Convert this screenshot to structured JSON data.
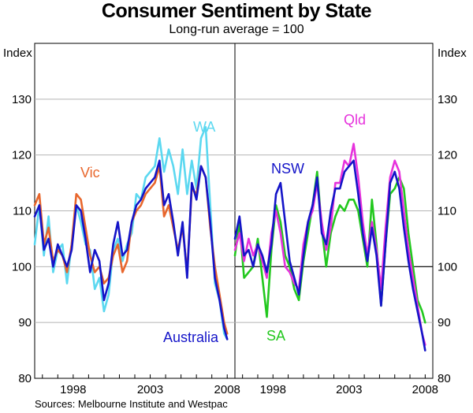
{
  "chart_data": {
    "type": "line",
    "title": "Consumer Sentiment by State",
    "subtitle": "Long-run average = 100",
    "ylabel_left": "Index",
    "ylabel_right": "Index",
    "ylim": [
      80,
      140
    ],
    "yticks": [
      80,
      90,
      100,
      110,
      120,
      130
    ],
    "xlim": [
      1995.5,
      2008.5
    ],
    "xticks": [
      1998,
      2003,
      2008
    ],
    "reference_line": 100,
    "source": "Sources: Melbourne Institute and Westpac",
    "panels": [
      {
        "name": "left",
        "series": [
          {
            "name": "WA",
            "label": "WA",
            "color": "#5bd8f0",
            "x": [
              1995.5,
              1995.8,
              1996.1,
              1996.4,
              1996.7,
              1997.0,
              1997.3,
              1997.6,
              1997.9,
              1998.2,
              1998.5,
              1998.8,
              1999.1,
              1999.4,
              1999.7,
              2000.0,
              2000.3,
              2000.6,
              2000.9,
              2001.2,
              2001.5,
              2001.8,
              2002.1,
              2002.4,
              2002.7,
              2003.0,
              2003.3,
              2003.6,
              2003.9,
              2004.2,
              2004.5,
              2004.8,
              2005.1,
              2005.4,
              2005.7,
              2006.0,
              2006.3,
              2006.6,
              2006.9,
              2007.2,
              2007.5,
              2007.8,
              2008.0
            ],
            "y": [
              104,
              111,
              102,
              109,
              99,
              103,
              104,
              97,
              104,
              111,
              108,
              104,
              103,
              96,
              98,
              92,
              95,
              103,
              105,
              101,
              104,
              106,
              113,
              112,
              116,
              117,
              118,
              123,
              117,
              121,
              118,
              113,
              121,
              113,
              119,
              114,
              123,
              125,
              111,
              97,
              94,
              88,
              87
            ]
          },
          {
            "name": "Vic",
            "label": "Vic",
            "color": "#e8662c",
            "x": [
              1995.5,
              1995.8,
              1996.1,
              1996.4,
              1996.7,
              1997.0,
              1997.3,
              1997.6,
              1997.9,
              1998.2,
              1998.5,
              1998.8,
              1999.1,
              1999.4,
              1999.7,
              2000.0,
              2000.3,
              2000.6,
              2000.9,
              2001.2,
              2001.5,
              2001.8,
              2002.1,
              2002.4,
              2002.7,
              2003.0,
              2003.3,
              2003.6,
              2003.9,
              2004.2,
              2004.5,
              2004.8,
              2005.1,
              2005.4,
              2005.7,
              2006.0,
              2006.3,
              2006.6,
              2006.9,
              2007.2,
              2007.5,
              2007.8,
              2008.0
            ],
            "y": [
              111,
              113,
              104,
              107,
              101,
              103,
              102,
              99,
              104,
              113,
              112,
              107,
              102,
              99,
              100,
              97,
              98,
              102,
              104,
              99,
              101,
              108,
              110,
              111,
              113,
              114,
              115,
              118,
              109,
              111,
              107,
              103,
              107,
              99,
              114,
              113,
              118,
              116,
              107,
              100,
              95,
              90,
              88
            ]
          },
          {
            "name": "Australia",
            "label": "Australia",
            "color": "#1414c8",
            "x": [
              1995.5,
              1995.8,
              1996.1,
              1996.4,
              1996.7,
              1997.0,
              1997.3,
              1997.6,
              1997.9,
              1998.2,
              1998.5,
              1998.8,
              1999.1,
              1999.4,
              1999.7,
              2000.0,
              2000.3,
              2000.6,
              2000.9,
              2001.2,
              2001.5,
              2001.8,
              2002.1,
              2002.4,
              2002.7,
              2003.0,
              2003.3,
              2003.6,
              2003.9,
              2004.2,
              2004.5,
              2004.8,
              2005.1,
              2005.4,
              2005.7,
              2006.0,
              2006.3,
              2006.6,
              2006.9,
              2007.2,
              2007.5,
              2007.8,
              2008.0
            ],
            "y": [
              109,
              111,
              103,
              105,
              100,
              104,
              102,
              100,
              103,
              111,
              110,
              105,
              99,
              103,
              101,
              94,
              97,
              104,
              108,
              102,
              103,
              108,
              111,
              112,
              114,
              115,
              116,
              119,
              111,
              113,
              108,
              102,
              108,
              98,
              115,
              112,
              118,
              116,
              108,
              98,
              94,
              89,
              87
            ]
          }
        ]
      },
      {
        "name": "right",
        "series": [
          {
            "name": "SA",
            "label": "SA",
            "color": "#22c81e",
            "x": [
              1995.5,
              1995.8,
              1996.1,
              1996.4,
              1996.7,
              1997.0,
              1997.3,
              1997.6,
              1997.9,
              1998.2,
              1998.5,
              1998.8,
              1999.1,
              1999.4,
              1999.7,
              2000.0,
              2000.3,
              2000.6,
              2000.9,
              2001.2,
              2001.5,
              2001.8,
              2002.1,
              2002.4,
              2002.7,
              2003.0,
              2003.3,
              2003.6,
              2003.9,
              2004.2,
              2004.5,
              2004.8,
              2005.1,
              2005.4,
              2005.7,
              2006.0,
              2006.3,
              2006.6,
              2006.9,
              2007.2,
              2007.5,
              2007.8,
              2008.0
            ],
            "y": [
              102,
              108,
              98,
              99,
              100,
              105,
              98,
              91,
              103,
              111,
              108,
              102,
              100,
              96,
              94,
              101,
              106,
              111,
              117,
              107,
              100,
              106,
              109,
              111,
              110,
              112,
              112,
              110,
              105,
              100,
              112,
              104,
              93,
              104,
              113,
              114,
              116,
              114,
              106,
              100,
              94,
              92,
              90
            ]
          },
          {
            "name": "Qld",
            "label": "Qld",
            "color": "#e632dc",
            "x": [
              1995.5,
              1995.8,
              1996.1,
              1996.4,
              1996.7,
              1997.0,
              1997.3,
              1997.6,
              1997.9,
              1998.2,
              1998.5,
              1998.8,
              1999.1,
              1999.4,
              1999.7,
              2000.0,
              2000.3,
              2000.6,
              2000.9,
              2001.2,
              2001.5,
              2001.8,
              2002.1,
              2002.4,
              2002.7,
              2003.0,
              2003.3,
              2003.6,
              2003.9,
              2004.2,
              2004.5,
              2004.8,
              2005.1,
              2005.4,
              2005.7,
              2006.0,
              2006.3,
              2006.6,
              2006.9,
              2007.2,
              2007.5,
              2007.8,
              2008.0
            ],
            "y": [
              103,
              106,
              101,
              105,
              102,
              104,
              101,
              98,
              106,
              110,
              106,
              100,
              99,
              97,
              96,
              104,
              108,
              110,
              115,
              108,
              103,
              107,
              115,
              115,
              119,
              118,
              122,
              116,
              108,
              102,
              108,
              103,
              96,
              107,
              116,
              119,
              117,
              110,
              103,
              98,
              93,
              88,
              86
            ]
          },
          {
            "name": "NSW",
            "label": "NSW",
            "color": "#1414c8",
            "x": [
              1995.5,
              1995.8,
              1996.1,
              1996.4,
              1996.7,
              1997.0,
              1997.3,
              1997.6,
              1997.9,
              1998.2,
              1998.5,
              1998.8,
              1999.1,
              1999.4,
              1999.7,
              2000.0,
              2000.3,
              2000.6,
              2000.9,
              2001.2,
              2001.5,
              2001.8,
              2002.1,
              2002.4,
              2002.7,
              2003.0,
              2003.3,
              2003.6,
              2003.9,
              2004.2,
              2004.5,
              2004.8,
              2005.1,
              2005.4,
              2005.7,
              2006.0,
              2006.3,
              2006.6,
              2006.9,
              2007.2,
              2007.5,
              2007.8,
              2008.0
            ],
            "y": [
              105,
              109,
              102,
              103,
              100,
              104,
              102,
              99,
              104,
              113,
              115,
              108,
              101,
              98,
              95,
              102,
              108,
              111,
              116,
              106,
              104,
              110,
              114,
              114,
              117,
              118,
              119,
              113,
              106,
              101,
              107,
              102,
              93,
              104,
              115,
              117,
              114,
              107,
              101,
              96,
              92,
              88,
              85
            ]
          }
        ]
      }
    ]
  }
}
